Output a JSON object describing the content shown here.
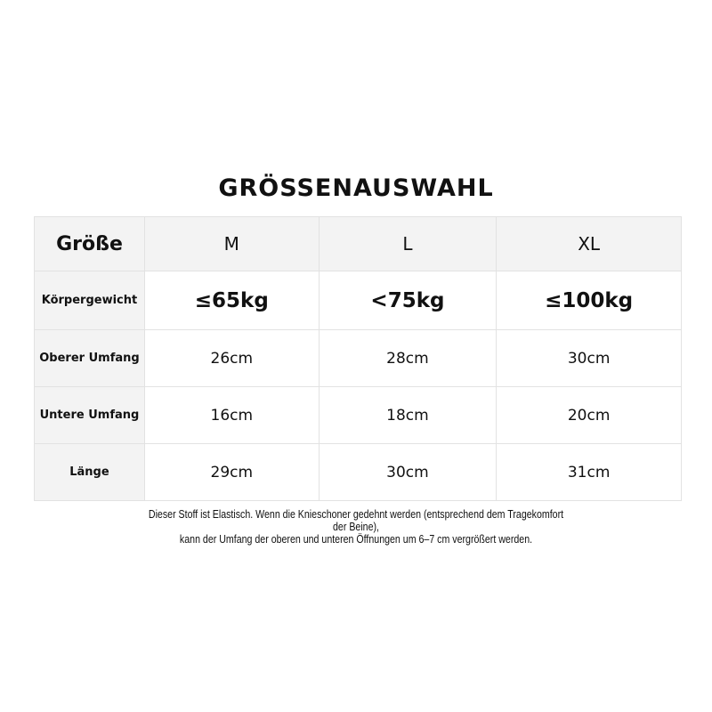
{
  "title": "GRÖSSENAUSWAHL",
  "header": {
    "label": "Größe",
    "sizes": [
      "M",
      "L",
      "XL"
    ]
  },
  "rows": [
    {
      "label": "Körpergewicht",
      "values": [
        "≤65kg",
        "<75kg",
        "≤100kg"
      ]
    },
    {
      "label": "Oberer Umfang",
      "values": [
        "26cm",
        "28cm",
        "30cm"
      ]
    },
    {
      "label": "Untere Umfang",
      "values": [
        "16cm",
        "18cm",
        "20cm"
      ]
    },
    {
      "label": "Länge",
      "values": [
        "29cm",
        "30cm",
        "31cm"
      ]
    }
  ],
  "note": {
    "line1": "Dieser Stoff ist Elastisch. Wenn die Knieschoner gedehnt werden (entsprechend dem Tragekomfort",
    "line2": "der Beine),",
    "line3": "kann der Umfang der oberen und unteren Öffnungen um 6–7 cm vergrößert werden."
  }
}
